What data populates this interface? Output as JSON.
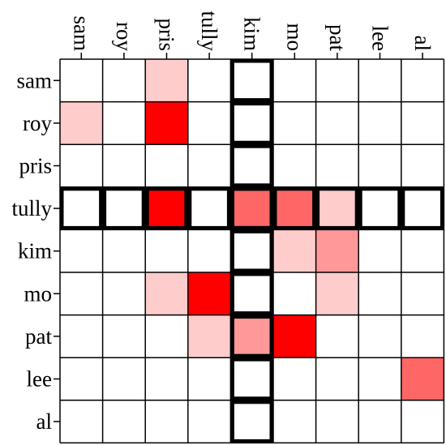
{
  "chart_data": {
    "type": "heatmap",
    "rows": [
      "sam",
      "roy",
      "pris",
      "tully",
      "kim",
      "mo",
      "pat",
      "lee",
      "al"
    ],
    "columns": [
      "sam",
      "roy",
      "pris",
      "tully",
      "kim",
      "mo",
      "pat",
      "lee",
      "al"
    ],
    "values": [
      [
        0,
        0,
        0.2,
        0,
        0,
        0,
        0,
        0,
        0
      ],
      [
        0.2,
        0,
        1,
        0,
        0,
        0,
        0,
        0,
        0
      ],
      [
        0,
        0,
        0,
        0,
        0,
        0,
        0,
        0,
        0
      ],
      [
        0,
        0,
        1,
        0,
        0.6,
        0.6,
        0.2,
        0,
        0
      ],
      [
        0,
        0,
        0,
        0,
        0,
        0.2,
        0.4,
        0,
        0
      ],
      [
        0,
        0,
        0.2,
        1,
        0,
        0,
        0.2,
        0,
        0
      ],
      [
        0,
        0,
        0,
        0.2,
        0.4,
        1,
        0,
        0,
        0
      ],
      [
        0,
        0,
        0,
        0,
        0,
        0,
        0,
        0,
        0.6
      ],
      [
        0,
        0,
        0,
        0,
        0,
        0,
        0,
        0,
        0
      ]
    ],
    "highlighted_row": "tully",
    "highlighted_column": "kim",
    "colors": {
      "cell_high": "#ff0000",
      "cell_low": "#ffffff",
      "grid": "#000000"
    }
  }
}
